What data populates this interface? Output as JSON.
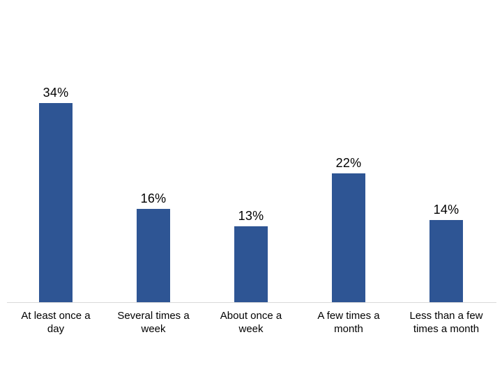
{
  "chart_data": {
    "type": "bar",
    "title": "",
    "xlabel": "",
    "ylabel": "",
    "categories": [
      "At least once a day",
      "Several times a week",
      "About once a week",
      "A few times a month",
      "Less than a few times a month"
    ],
    "values": [
      34,
      16,
      13,
      22,
      14
    ],
    "value_labels": [
      "34%",
      "16%",
      "13%",
      "22%",
      "14%"
    ],
    "category_label_lines": [
      [
        "At least once a",
        "day"
      ],
      [
        "Several times a",
        "week"
      ],
      [
        "About once a",
        "week"
      ],
      [
        "A few times a",
        "month"
      ],
      [
        "Less than a few",
        "times a month"
      ]
    ],
    "ylim": [
      0,
      40
    ],
    "grid": false,
    "legend": false,
    "bar_color": "#2E5594",
    "axis_line_color": "#D9D9D9",
    "label_color": "#000000",
    "background_color": "#FFFFFF"
  }
}
